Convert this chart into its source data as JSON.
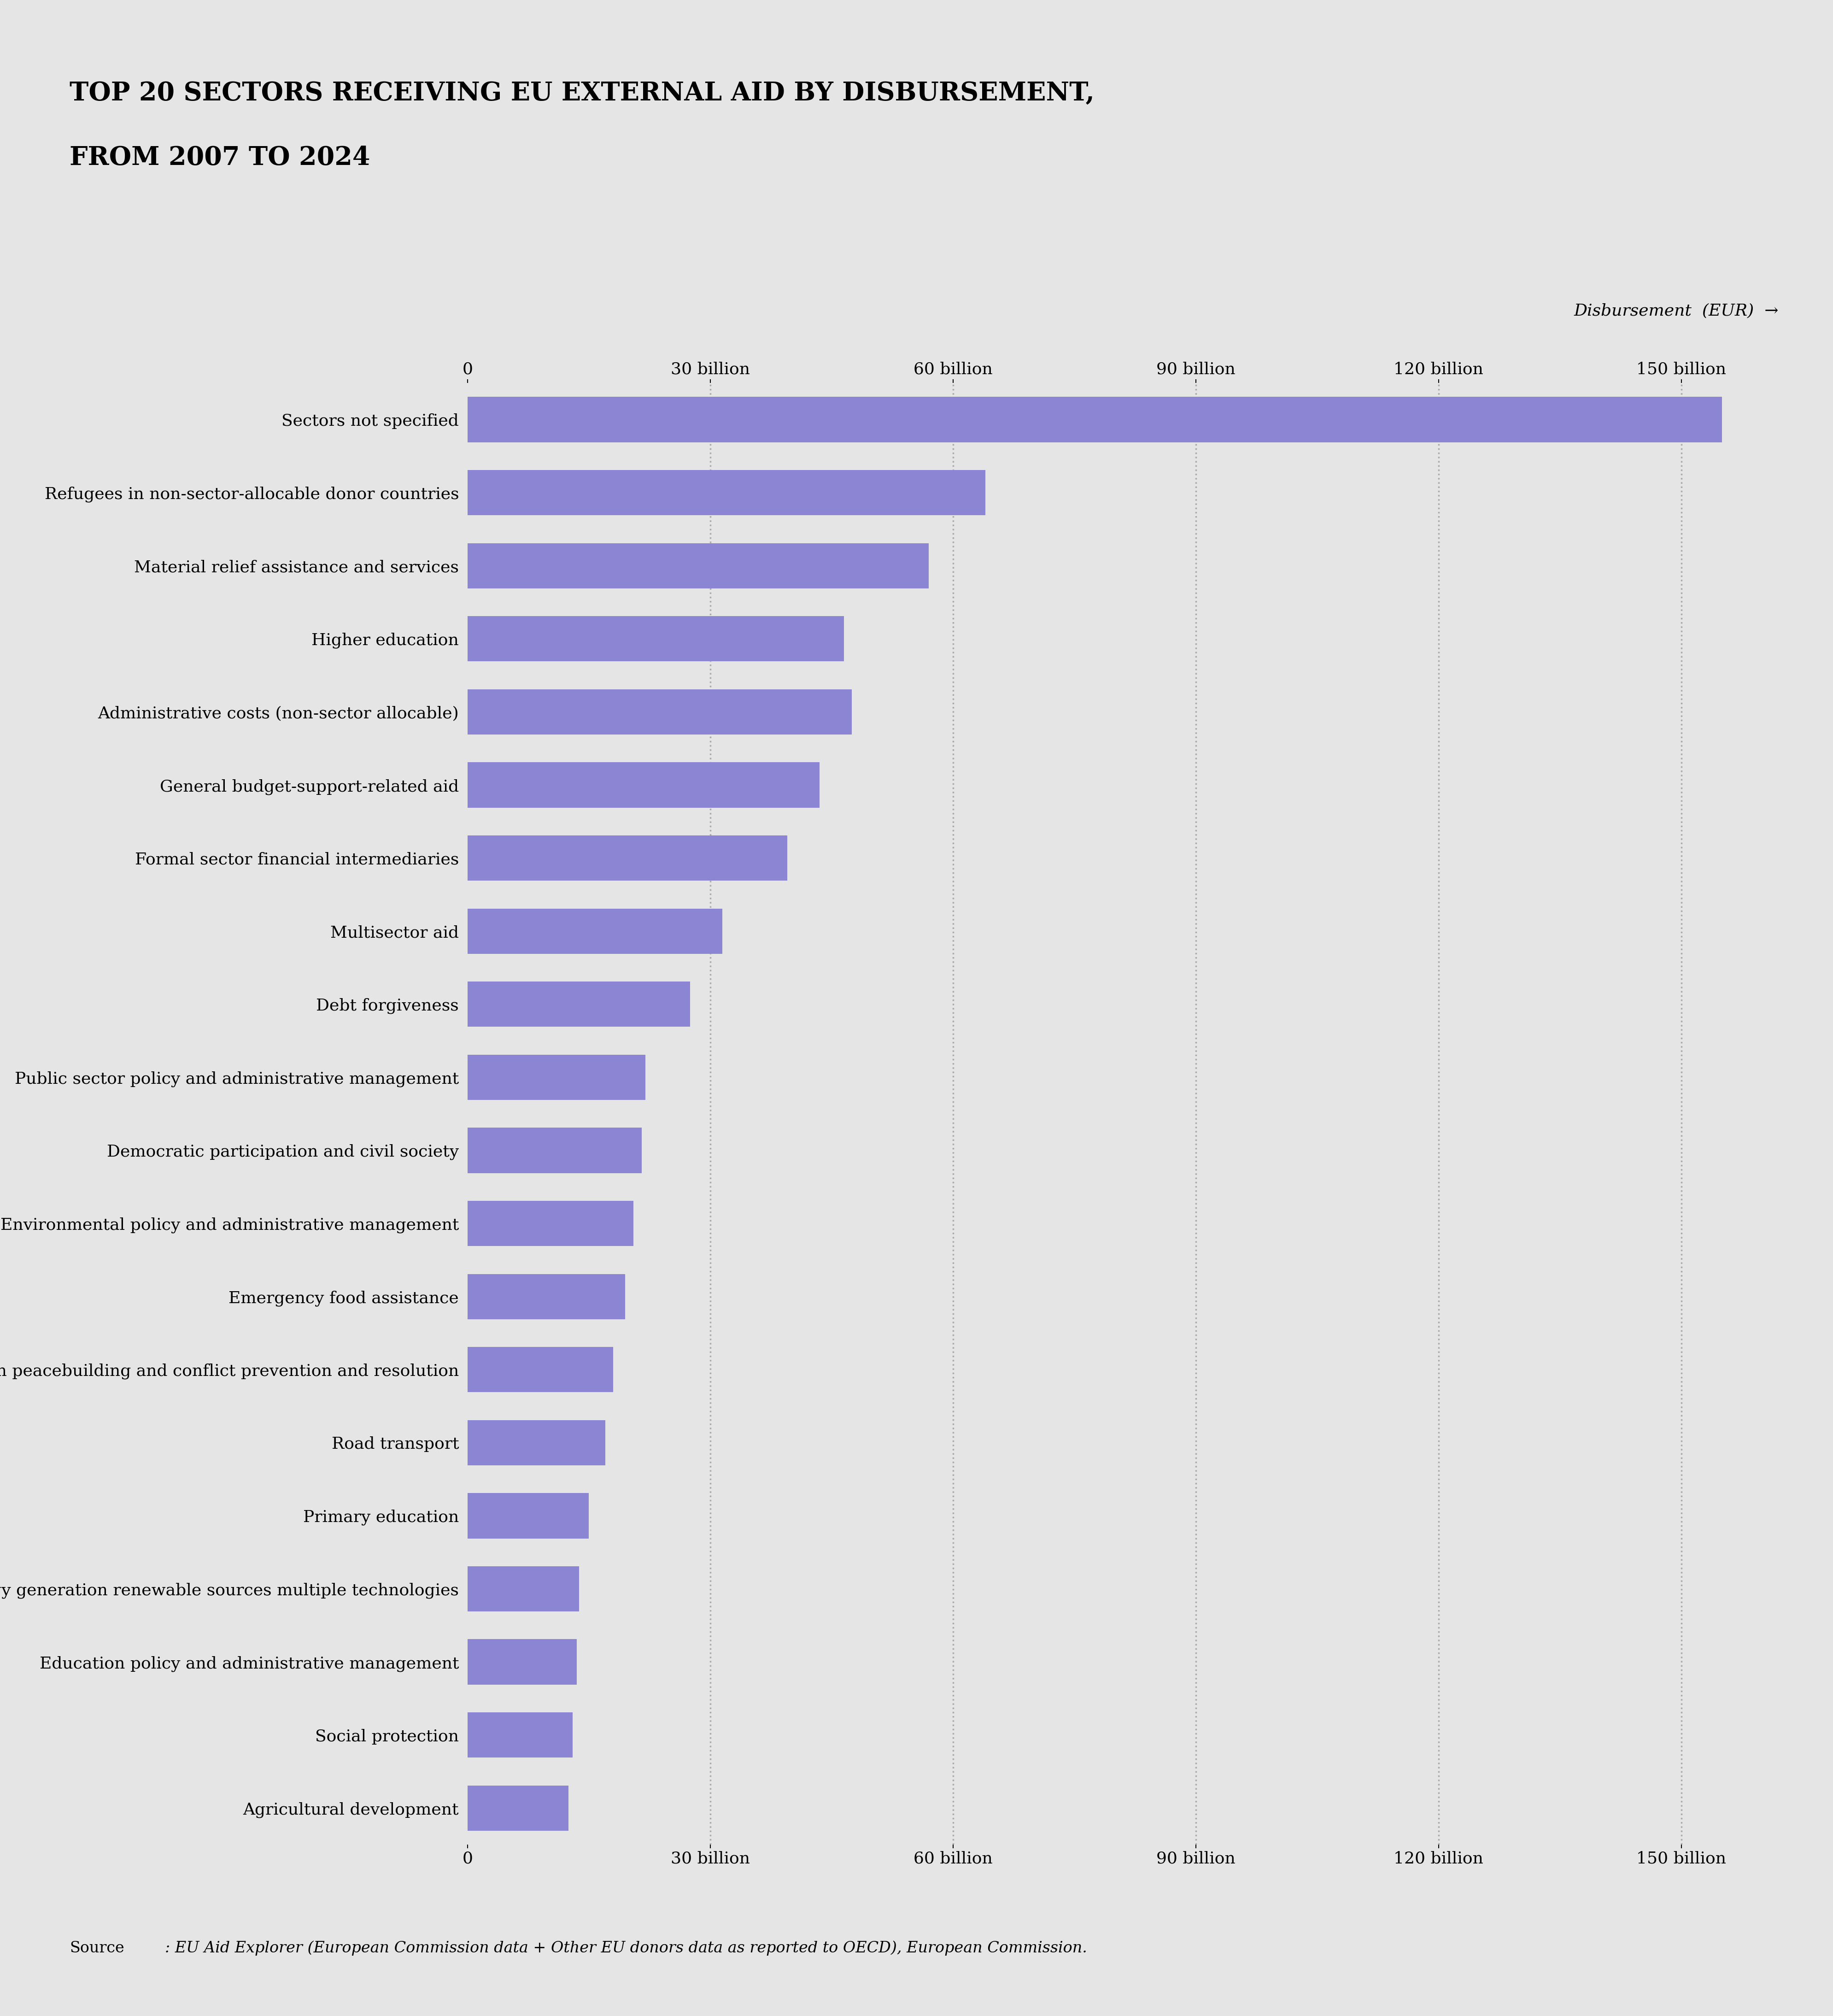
{
  "title_line1": "TOP 20 SECTORS RECEIVING EU EXTERNAL AID BY DISBURSEMENT,",
  "title_line2": "FROM 2007 TO 2024",
  "disbursement_label": "Disbursement  (EUR)  →",
  "source_normal": "Source",
  "source_italic": ": EU Aid Explorer (European Commission data + Other EU donors data as reported to OECD), European Commission.",
  "categories": [
    "Agricultural development",
    "Social protection",
    "Education policy and administrative management",
    "Energy generation renewable sources multiple technologies",
    "Primary education",
    "Road transport",
    "Civilian peacebuilding and conflict prevention and resolution",
    "Emergency food assistance",
    "Environmental policy and administrative management",
    "Democratic participation and civil society",
    "Public sector policy and administrative management",
    "Debt forgiveness",
    "Multisector aid",
    "Formal sector financial intermediaries",
    "General budget-support-related aid",
    "Administrative costs (non-sector allocable)",
    "Higher education",
    "Material relief assistance and services",
    "Refugees in non-sector-allocable donor countries",
    "Sectors not specified"
  ],
  "values": [
    12.5,
    13.0,
    13.5,
    13.8,
    15.0,
    17.0,
    18.0,
    19.5,
    20.5,
    21.5,
    22.0,
    27.5,
    31.5,
    39.5,
    43.5,
    47.5,
    46.5,
    57.0,
    64.0,
    155.0
  ],
  "bar_color": "#8b85d4",
  "background_color": "#e5e5e5",
  "xlim_max": 162,
  "xticks": [
    0,
    30,
    60,
    90,
    120,
    150
  ],
  "xticklabels": [
    "0",
    "30 billion",
    "60 billion",
    "90 billion",
    "120 billion",
    "150 billion"
  ],
  "grid_color": "#aaaaaa",
  "title_fontsize": 40,
  "label_fontsize": 26,
  "tick_fontsize": 26,
  "source_fontsize": 24,
  "disb_fontsize": 26
}
